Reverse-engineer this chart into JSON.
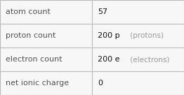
{
  "rows": [
    {
      "label": "atom count",
      "value": "57",
      "value_bold": "",
      "suffix": ""
    },
    {
      "label": "proton count",
      "value": "200 p",
      "value_bold": "",
      "suffix": " (protons)"
    },
    {
      "label": "electron count",
      "value": "200 e",
      "value_bold": "",
      "suffix": " (electrons)"
    },
    {
      "label": "net ionic charge",
      "value": "0",
      "value_bold": "",
      "suffix": ""
    }
  ],
  "col_split": 0.5,
  "background_color": "#f7f7f7",
  "border_color": "#bbbbbb",
  "label_color": "#555555",
  "value_color": "#111111",
  "suffix_color": "#999999",
  "label_fontsize": 8.0,
  "value_fontsize": 8.0,
  "suffix_fontsize": 7.5
}
